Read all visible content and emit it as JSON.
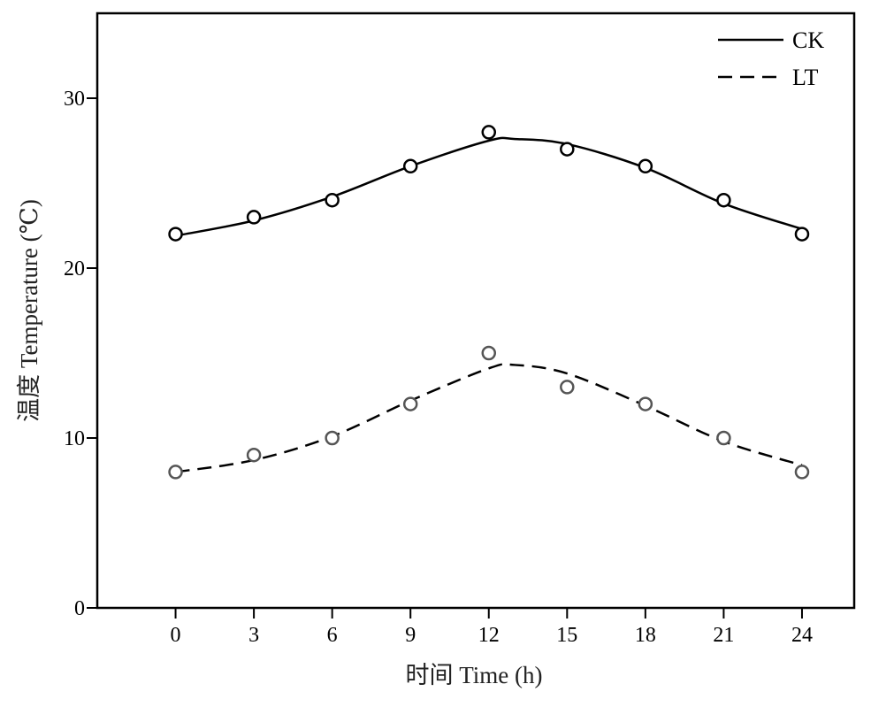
{
  "chart_data": {
    "type": "scatter",
    "xlabel": "时间 Time (h)",
    "ylabel": "温度 Temperature (℃)",
    "xlim": [
      -3,
      26
    ],
    "ylim": [
      0,
      35
    ],
    "xticks": [
      0,
      3,
      6,
      9,
      12,
      15,
      18,
      21,
      24
    ],
    "yticks": [
      0,
      10,
      20,
      30
    ],
    "legend_position": "top-right",
    "series": [
      {
        "name": "CK",
        "line_style": "solid",
        "color": "#000000",
        "x": [
          0,
          3,
          6,
          9,
          12,
          15,
          18,
          21,
          24
        ],
        "y": [
          22,
          23,
          24,
          26,
          28,
          27,
          26,
          24,
          22
        ],
        "fit_curve": {
          "x": [
            0,
            3,
            6,
            9,
            12,
            13,
            15,
            18,
            21,
            24
          ],
          "y": [
            21.9,
            22.8,
            24.2,
            26.0,
            27.5,
            27.6,
            27.3,
            25.9,
            23.8,
            22.3
          ]
        }
      },
      {
        "name": "LT",
        "line_style": "dashed",
        "color": "#555555",
        "x": [
          0,
          3,
          6,
          9,
          12,
          15,
          18,
          21,
          24
        ],
        "y": [
          8,
          9,
          10,
          12,
          15,
          13,
          12,
          10,
          8
        ],
        "fit_curve": {
          "x": [
            0,
            3,
            6,
            9,
            12,
            13,
            15,
            18,
            21,
            24
          ],
          "y": [
            8.0,
            8.7,
            10.1,
            12.2,
            14.1,
            14.3,
            13.8,
            11.9,
            9.8,
            8.4
          ]
        }
      }
    ]
  }
}
